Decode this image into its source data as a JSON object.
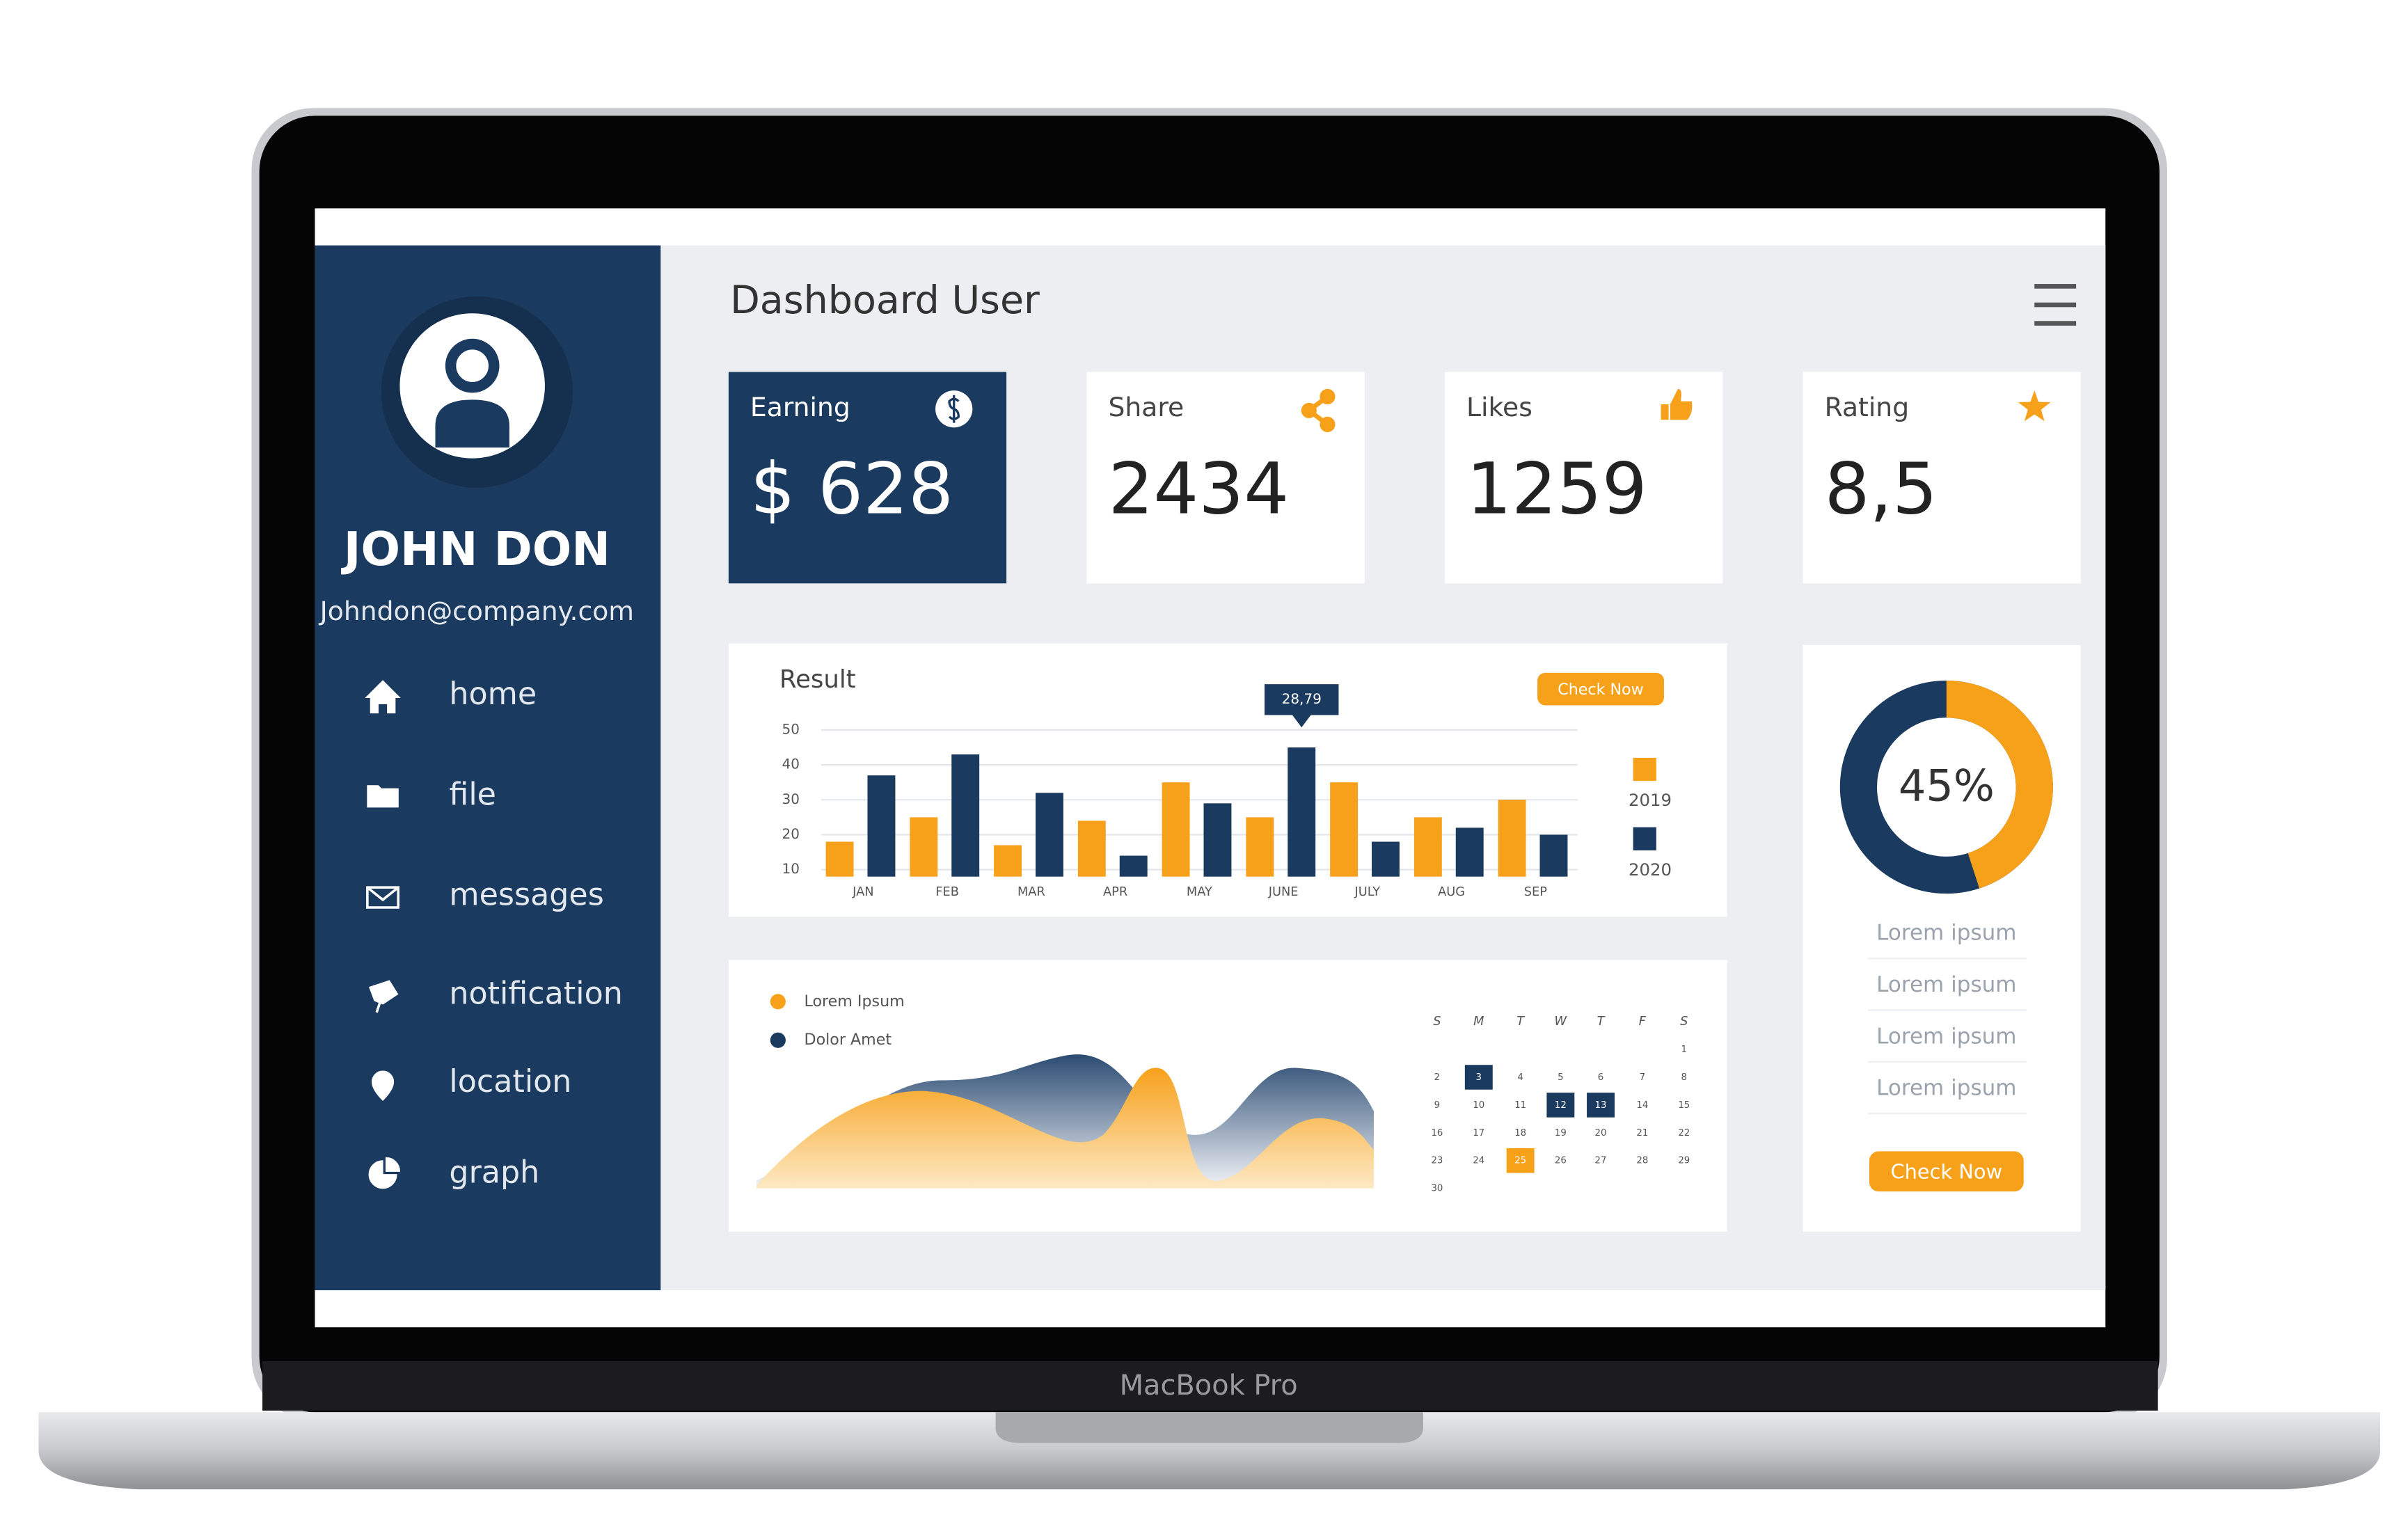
{
  "device_label": "MacBook Pro",
  "sidebar": {
    "name": "JOHN DON",
    "email": "Johndon@company.com",
    "menu": [
      "home",
      "file",
      "messages",
      "notification",
      "location",
      "graph"
    ]
  },
  "header": {
    "title": "Dashboard User"
  },
  "stats": [
    {
      "label": "Earning",
      "value": "$ 628"
    },
    {
      "label": "Share",
      "value": "2434"
    },
    {
      "label": "Likes",
      "value": "1259"
    },
    {
      "label": "Rating",
      "value": "8,5"
    }
  ],
  "chart_data": [
    {
      "type": "bar",
      "title": "Result",
      "button": "Check Now",
      "annotation": "28,79",
      "categories": [
        "JAN",
        "FEB",
        "MAR",
        "APR",
        "MAY",
        "JUNE",
        "JULY",
        "AUG",
        "SEP"
      ],
      "series": [
        {
          "name": "2019",
          "color": "#f7a11a",
          "values": [
            18,
            25,
            17,
            24,
            35,
            25,
            35,
            25,
            30
          ]
        },
        {
          "name": "2020",
          "color": "#1b3a5f",
          "values": [
            37,
            43,
            32,
            14,
            29,
            45,
            18,
            22,
            20
          ]
        }
      ],
      "ylim": [
        8,
        50
      ],
      "yticks": [
        10,
        20,
        30,
        40,
        50
      ],
      "grid": true
    },
    {
      "type": "donut",
      "values": [
        45
      ],
      "value_labels": [
        "45%"
      ],
      "color": "#f7a11a",
      "track_color": "#1b3a5f"
    }
  ],
  "wave_panel": {
    "legend": [
      "Lorem Ipsum",
      "Dolor Amet"
    ]
  },
  "calendar": {
    "weekdays": [
      "S",
      "M",
      "T",
      "W",
      "T",
      "F",
      "S"
    ],
    "days": [
      1,
      2,
      3,
      4,
      5,
      6,
      7,
      8,
      9,
      10,
      11,
      12,
      13,
      14,
      15,
      16,
      17,
      18,
      19,
      20,
      21,
      22,
      23,
      24,
      25,
      26,
      27,
      28,
      29,
      30
    ]
  },
  "side_panel": {
    "items": [
      "Lorem ipsum",
      "Lorem ipsum",
      "Lorem ipsum",
      "Lorem ipsum"
    ],
    "button": "Check Now"
  }
}
